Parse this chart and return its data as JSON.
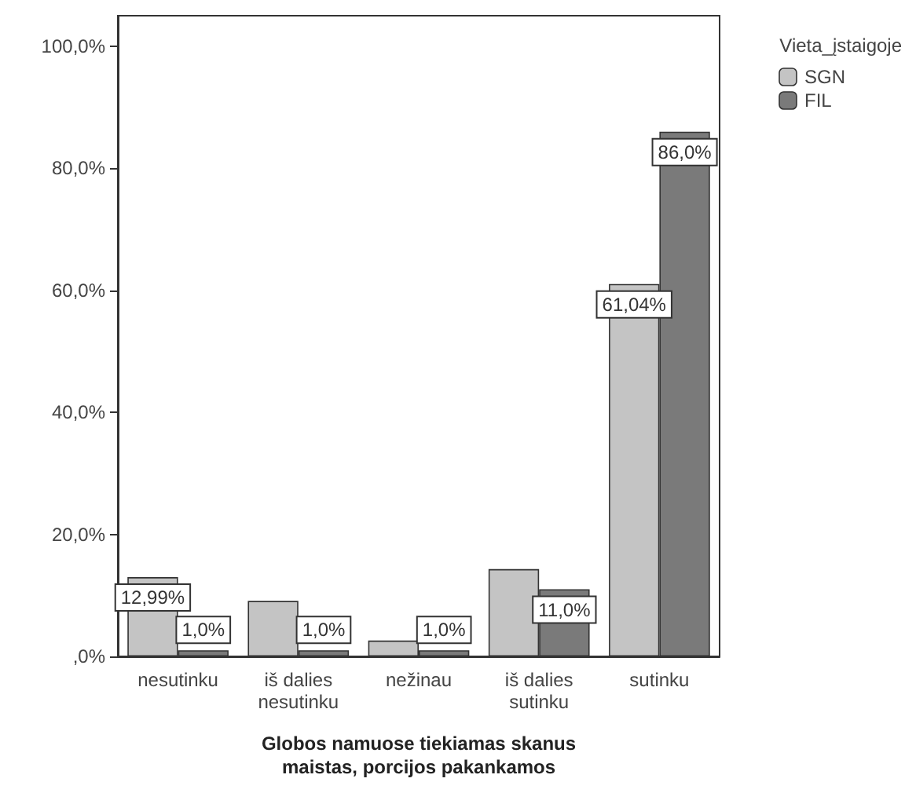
{
  "chart_data": {
    "type": "bar",
    "xlabel": "Globos namuose tiekiamas skanus\nmaistas, porcijos pakankamos",
    "legend_title": "Vieta_įstaigoje",
    "legend": "top right",
    "grid": false,
    "categories": [
      "nesutinku",
      "iš dalies\nnesutinku",
      "nežinau",
      "iš dalies\nsutinku",
      "sutinku"
    ],
    "series": [
      {
        "name": "SGN",
        "color": "#c4c4c4",
        "values": [
          12.99,
          9.1,
          2.6,
          14.3,
          61.04
        ],
        "value_labels": [
          "12,99%",
          null,
          null,
          null,
          "61,04%"
        ]
      },
      {
        "name": "FIL",
        "color": "#7a7a7a",
        "values": [
          1.0,
          1.0,
          1.0,
          11.0,
          86.0
        ],
        "value_labels": [
          "1,0%",
          "1,0%",
          "1,0%",
          "11,0%",
          "86,0%"
        ]
      }
    ],
    "ylim": [
      0,
      105
    ],
    "yticks": [
      {
        "value": 0,
        "label": ",0%"
      },
      {
        "value": 20,
        "label": "20,0%"
      },
      {
        "value": 40,
        "label": "40,0%"
      },
      {
        "value": 60,
        "label": "60,0%"
      },
      {
        "value": 80,
        "label": "80,0%"
      },
      {
        "value": 100,
        "label": "100,0%"
      }
    ]
  }
}
